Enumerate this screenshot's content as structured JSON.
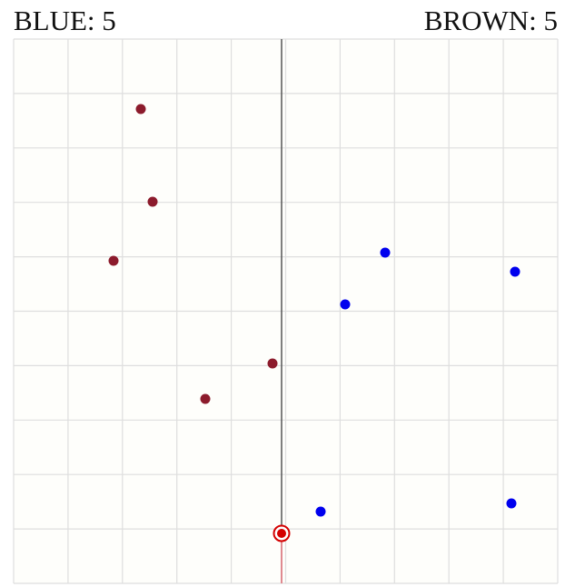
{
  "scoreboard": {
    "blue": "BLUE: 5",
    "brown": "BROWN: 5"
  }
}
